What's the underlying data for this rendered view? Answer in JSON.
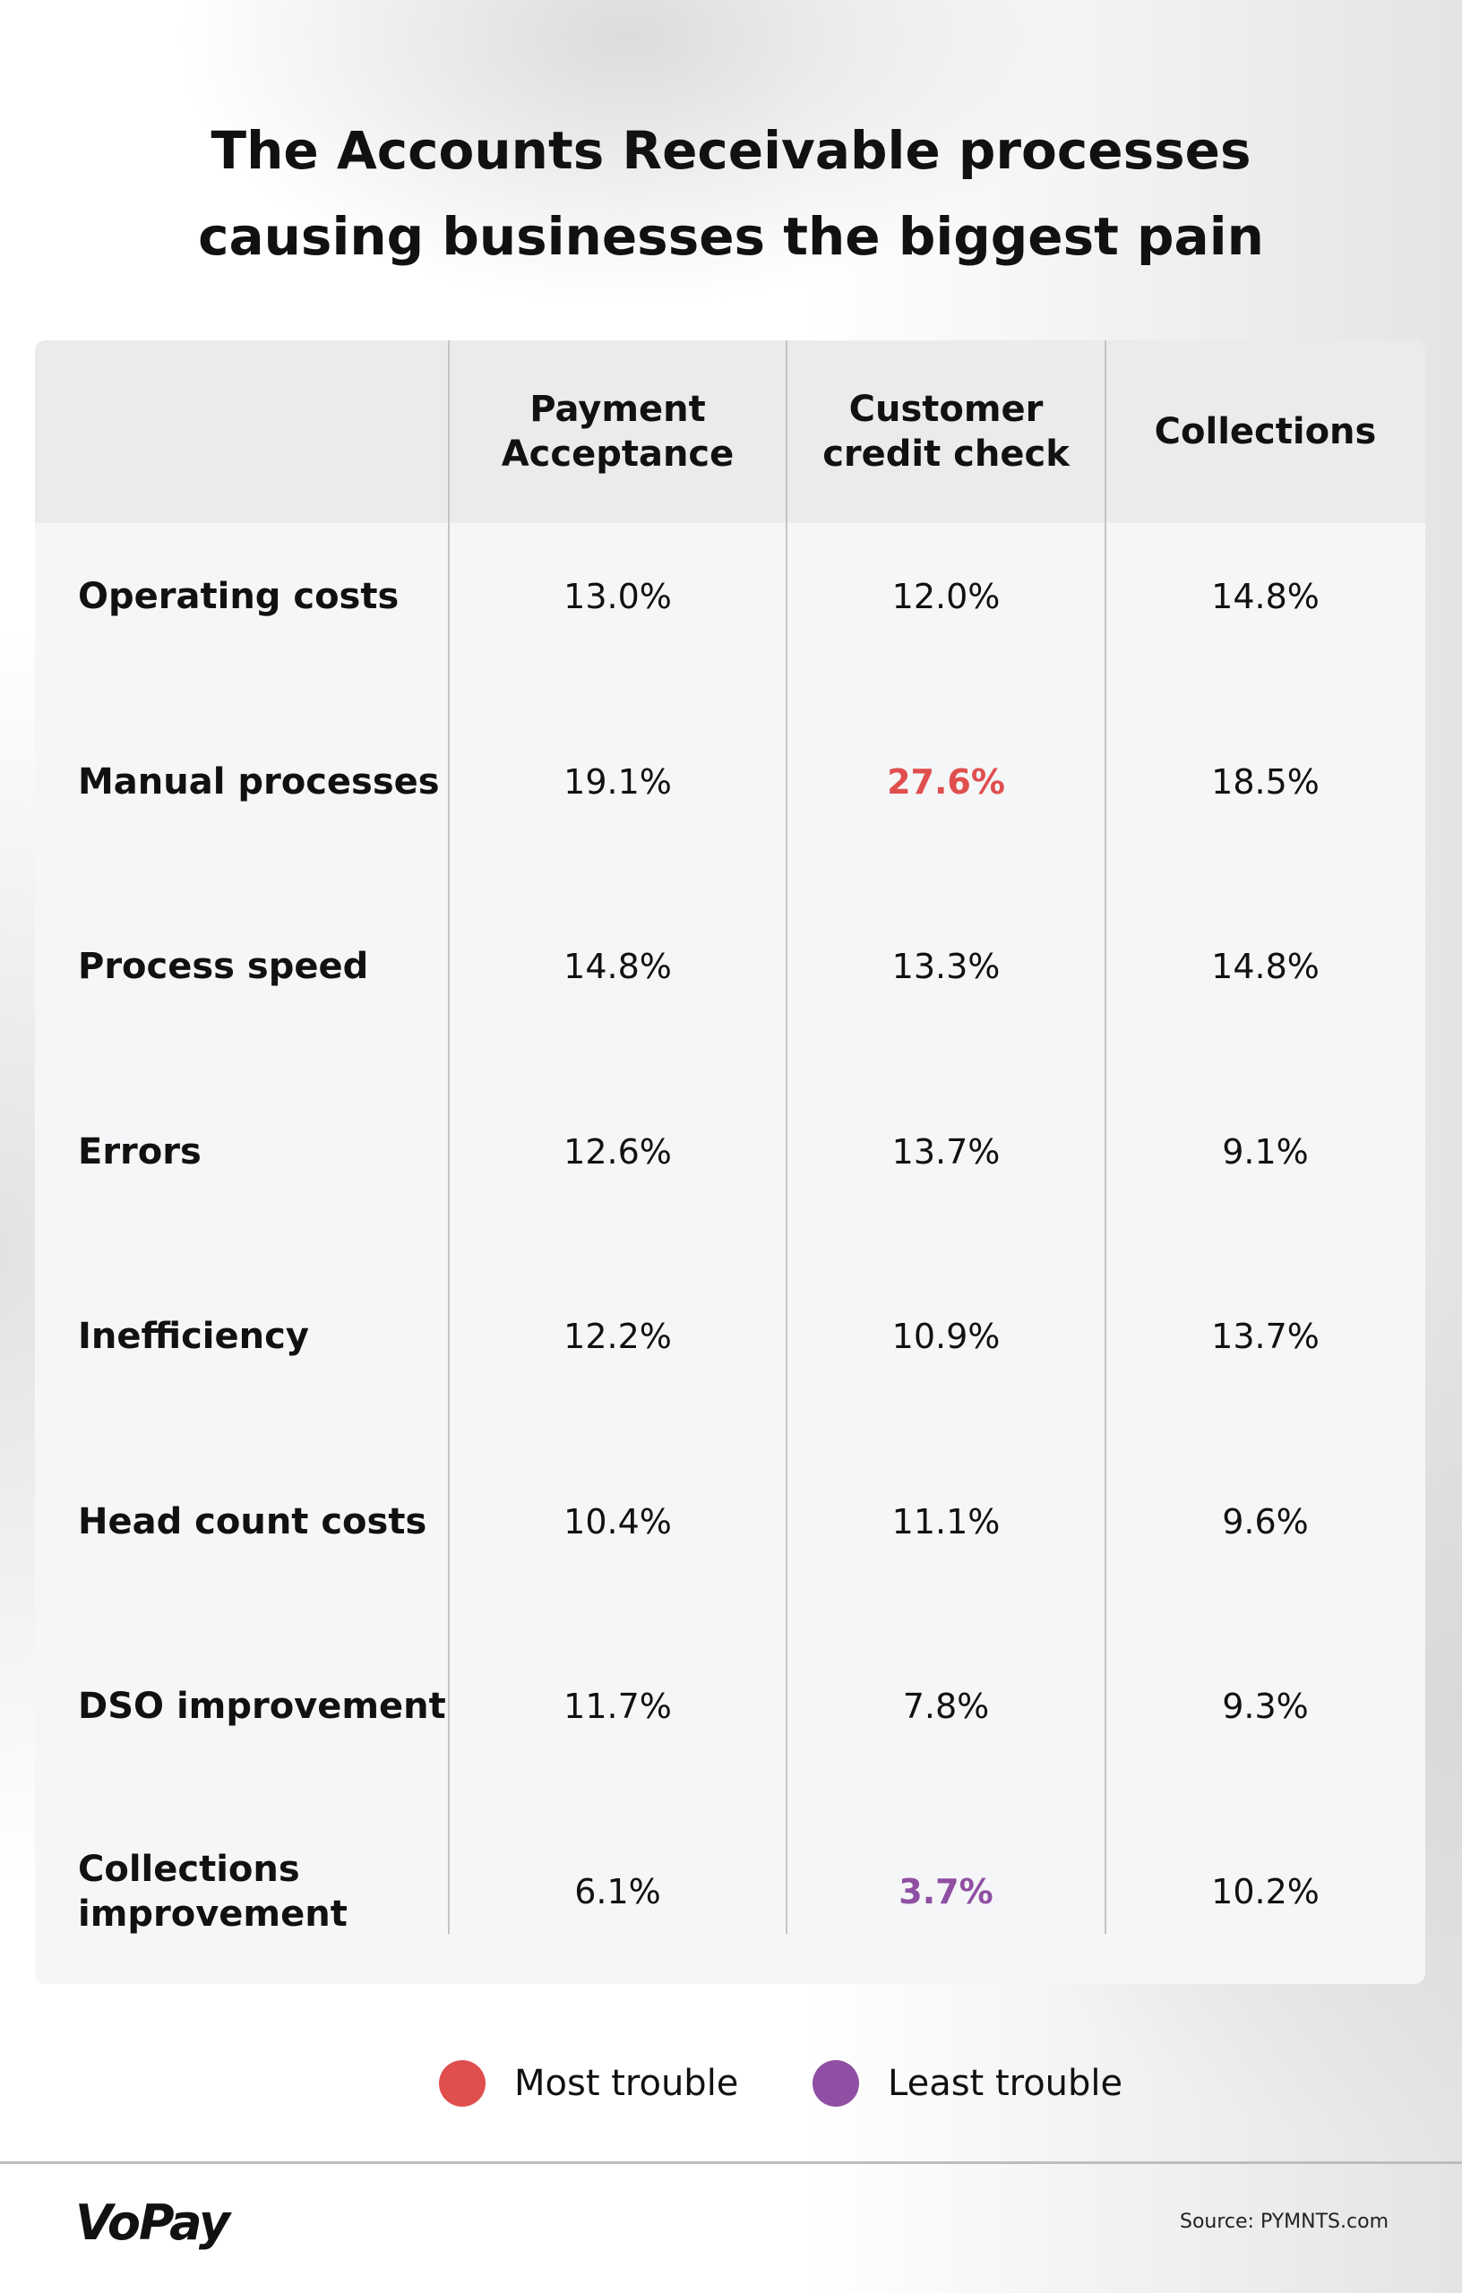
{
  "chart_data": {
    "type": "table",
    "title": [
      "The Accounts Receivable processes",
      "causing businesses the biggest pain"
    ],
    "columns": [
      "Payment Acceptance",
      "Customer credit check",
      "Collections"
    ],
    "column_lines": [
      [
        "Payment",
        "Acceptance"
      ],
      [
        "Customer",
        "credit check"
      ],
      [
        "Collections"
      ]
    ],
    "rows": [
      {
        "label": [
          "Operating costs"
        ],
        "values": [
          "13.0%",
          "12.0%",
          "14.8%"
        ]
      },
      {
        "label": [
          "Manual processes"
        ],
        "values": [
          "19.1%",
          "27.6%",
          "18.5%"
        ]
      },
      {
        "label": [
          "Process speed"
        ],
        "values": [
          "14.8%",
          "13.3%",
          "14.8%"
        ]
      },
      {
        "label": [
          "Errors"
        ],
        "values": [
          "12.6%",
          "13.7%",
          "9.1%"
        ]
      },
      {
        "label": [
          "Inefficiency"
        ],
        "values": [
          "12.2%",
          "10.9%",
          "13.7%"
        ]
      },
      {
        "label": [
          "Head count costs"
        ],
        "values": [
          "10.4%",
          "11.1%",
          "9.6%"
        ]
      },
      {
        "label": [
          "DSO improvement"
        ],
        "values": [
          "11.7%",
          "7.8%",
          "9.3%"
        ]
      },
      {
        "label": [
          "Collections",
          "improvement"
        ],
        "values": [
          "6.1%",
          "3.7%",
          "10.2%"
        ]
      }
    ],
    "highlights": [
      {
        "row": 1,
        "col": 1,
        "type": "most",
        "color": "#e04e4e"
      },
      {
        "row": 7,
        "col": 1,
        "type": "least",
        "color": "#8f4fa2"
      }
    ],
    "legend": [
      {
        "label": "Most trouble",
        "color": "#e04e4e"
      },
      {
        "label": "Least trouble",
        "color": "#8f4fa2"
      }
    ]
  },
  "footer": {
    "logo": "VoPay",
    "source": "Source: PYMNTS.com"
  }
}
